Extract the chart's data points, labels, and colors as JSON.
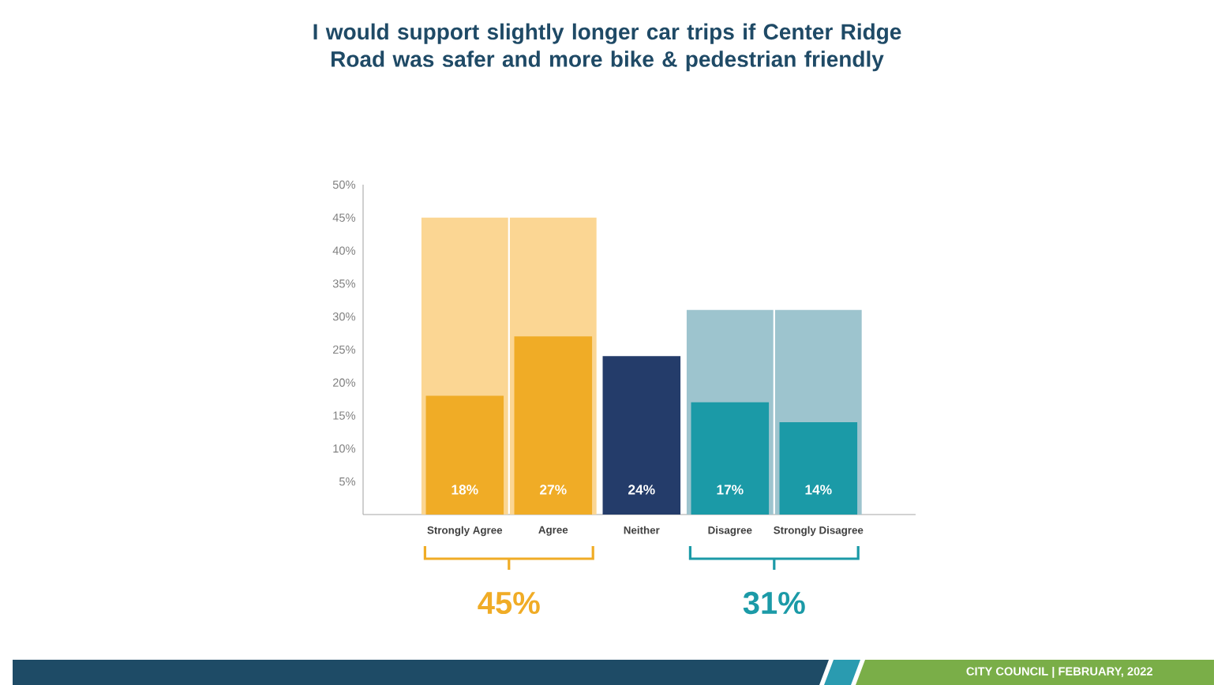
{
  "chart_data": {
    "type": "bar",
    "title": "I would support slightly longer car trips if Center Ridge Road was safer and more bike & pedestrian friendly",
    "categories": [
      "Strongly Agree",
      "Agree",
      "Neither",
      "Disagree",
      "Strongly Disagree"
    ],
    "series": [
      {
        "colors": [
          "#fbd693",
          "#fbd693",
          null,
          "#9dc4ce",
          "#9dc4ce"
        ],
        "values": [
          45,
          45,
          null,
          31,
          31
        ]
      },
      {
        "colors": [
          "#f0ac26",
          "#f0ac26",
          "#243c6a",
          "#1b9aa7",
          "#1b9aa7"
        ],
        "values": [
          18,
          27,
          24,
          17,
          14
        ],
        "value_labels": [
          "18%",
          "27%",
          "24%",
          "17%",
          "14%"
        ]
      }
    ],
    "ylim": [
      0,
      50
    ],
    "yticks": [
      {
        "value": 5,
        "label": "5%"
      },
      {
        "value": 10,
        "label": "10%"
      },
      {
        "value": 15,
        "label": "15%"
      },
      {
        "value": 20,
        "label": "20%"
      },
      {
        "value": 25,
        "label": "25%"
      },
      {
        "value": 30,
        "label": "30%"
      },
      {
        "value": 35,
        "label": "35%"
      },
      {
        "value": 40,
        "label": "40%"
      },
      {
        "value": 45,
        "label": "45%"
      },
      {
        "value": 50,
        "label": "50%"
      }
    ],
    "annotations": [
      "45%",
      "31%",
      "CITY COUNCIL | FEBRUARY, 2022"
    ]
  }
}
